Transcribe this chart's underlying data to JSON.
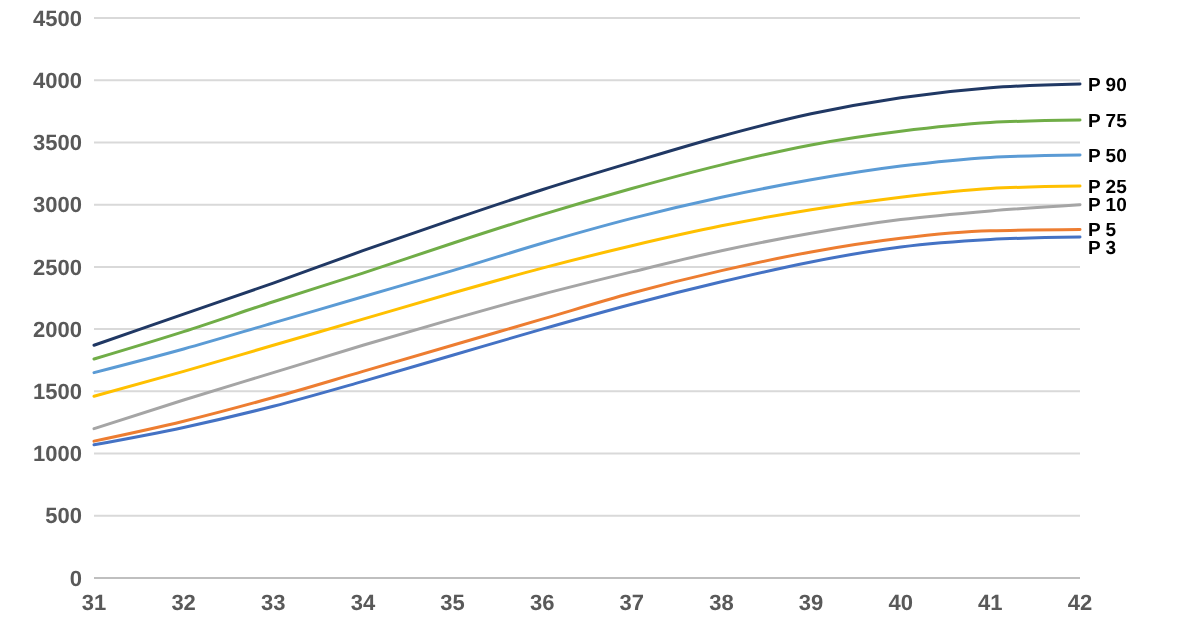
{
  "chart_data": {
    "type": "line",
    "x": [
      31,
      32,
      33,
      34,
      35,
      36,
      37,
      38,
      39,
      40,
      41,
      42
    ],
    "xlim": [
      31,
      42
    ],
    "xticks": [
      31,
      32,
      33,
      34,
      35,
      36,
      37,
      38,
      39,
      40,
      41,
      42
    ],
    "ylim": [
      0,
      4500
    ],
    "yticks": [
      0,
      500,
      1000,
      1500,
      2000,
      2500,
      3000,
      3500,
      4000,
      4500
    ],
    "grid": "y",
    "marker": "none",
    "line_style": "solid",
    "series": [
      {
        "name": "P 90",
        "color": "#203864",
        "values": [
          1870,
          2120,
          2370,
          2630,
          2880,
          3120,
          3340,
          3550,
          3730,
          3860,
          3940,
          3970
        ]
      },
      {
        "name": "P 75",
        "color": "#70ad47",
        "values": [
          1760,
          1980,
          2220,
          2450,
          2690,
          2920,
          3130,
          3320,
          3480,
          3590,
          3660,
          3680
        ]
      },
      {
        "name": "P 50",
        "color": "#5b9bd5",
        "values": [
          1650,
          1840,
          2050,
          2260,
          2470,
          2690,
          2890,
          3060,
          3200,
          3310,
          3380,
          3400
        ]
      },
      {
        "name": "P 25",
        "color": "#ffc000",
        "values": [
          1460,
          1660,
          1870,
          2080,
          2290,
          2490,
          2670,
          2830,
          2960,
          3060,
          3130,
          3150
        ]
      },
      {
        "name": "P 10",
        "color": "#a5a5a5",
        "values": [
          1200,
          1430,
          1650,
          1870,
          2080,
          2280,
          2460,
          2630,
          2770,
          2880,
          2950,
          3000
        ]
      },
      {
        "name": "P 5",
        "color": "#ed7d31",
        "values": [
          1100,
          1260,
          1450,
          1660,
          1870,
          2080,
          2290,
          2470,
          2620,
          2730,
          2790,
          2800
        ]
      },
      {
        "name": "P 3",
        "color": "#4472c4",
        "values": [
          1070,
          1210,
          1380,
          1580,
          1790,
          2000,
          2200,
          2380,
          2540,
          2660,
          2720,
          2740
        ]
      }
    ]
  }
}
